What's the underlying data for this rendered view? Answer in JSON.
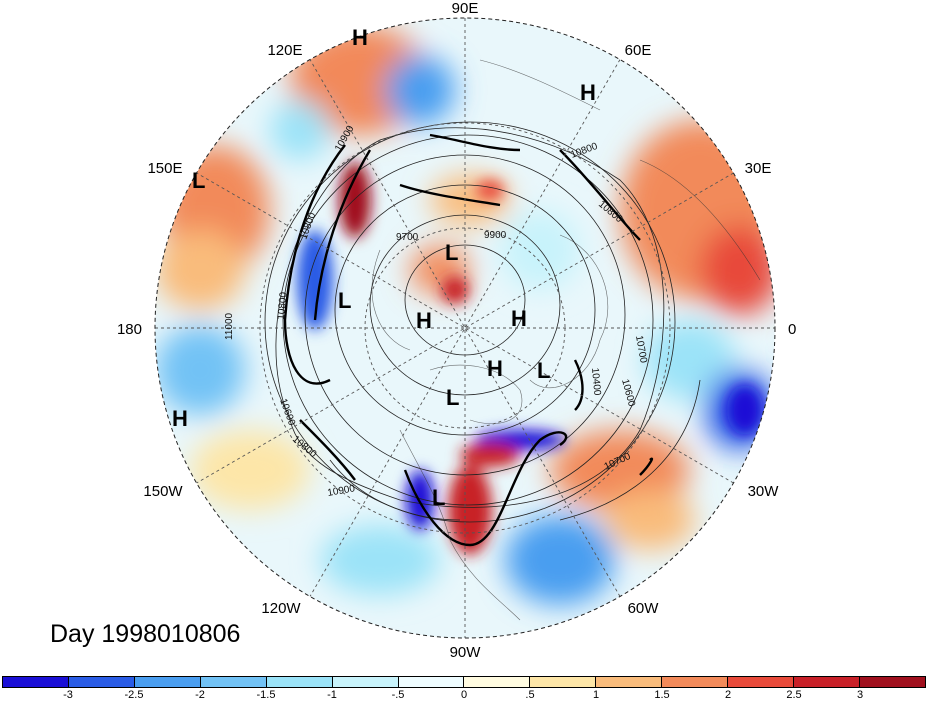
{
  "map": {
    "projection": "north-polar-stereographic",
    "longitude_labels": [
      {
        "id": "90e",
        "text": "90E"
      },
      {
        "id": "60e",
        "text": "60E"
      },
      {
        "id": "30e",
        "text": "30E"
      },
      {
        "id": "0",
        "text": "0"
      },
      {
        "id": "30w",
        "text": "30W"
      },
      {
        "id": "60w",
        "text": "60W"
      },
      {
        "id": "90w",
        "text": "90W"
      },
      {
        "id": "120w",
        "text": "120W"
      },
      {
        "id": "150w",
        "text": "150W"
      },
      {
        "id": "180",
        "text": "180"
      },
      {
        "id": "150e",
        "text": "150E"
      },
      {
        "id": "120e",
        "text": "120E"
      }
    ],
    "pressure_markers": [
      {
        "text": "H"
      },
      {
        "text": "H"
      },
      {
        "text": "L"
      },
      {
        "text": "H"
      },
      {
        "text": "L"
      },
      {
        "text": "L"
      },
      {
        "text": "H"
      },
      {
        "text": "H"
      },
      {
        "text": "H"
      },
      {
        "text": "L"
      },
      {
        "text": "L"
      },
      {
        "text": "H"
      },
      {
        "text": "L"
      }
    ],
    "contour_labels": [
      {
        "text": "10900"
      },
      {
        "text": "10800"
      },
      {
        "text": "10800"
      },
      {
        "text": "9700"
      },
      {
        "text": "9900"
      },
      {
        "text": "10800"
      },
      {
        "text": "10800"
      },
      {
        "text": "11000"
      },
      {
        "text": "10400"
      },
      {
        "text": "10700"
      },
      {
        "text": "10600"
      },
      {
        "text": "10700"
      },
      {
        "text": "10600"
      },
      {
        "text": "10800"
      },
      {
        "text": "10900"
      }
    ]
  },
  "date_label": "Day 1998010806",
  "colorbar": {
    "colors": [
      "#1a0fd6",
      "#2a5ce6",
      "#4a9ef0",
      "#72c2f5",
      "#9be3f8",
      "#c8f3fb",
      "#eefcff",
      "#fffbe0",
      "#fde6a8",
      "#f9bc7c",
      "#f28a5a",
      "#e84a3a",
      "#c82028",
      "#a0101e"
    ],
    "tick_labels": [
      "-3",
      "-2.5",
      "-2",
      "-1.5",
      "-1",
      "-.5",
      "0",
      ".5",
      "1",
      "1.5",
      "2",
      "2.5",
      "3"
    ]
  },
  "chart_data": {
    "type": "heatmap",
    "title": "",
    "field": "anomaly shading with height contours",
    "contour_values": [
      9700,
      9900,
      10400,
      10600,
      10700,
      10800,
      10900,
      11000
    ],
    "colorbar_levels": [
      -3,
      -2.5,
      -2,
      -1.5,
      -1,
      -0.5,
      0,
      0.5,
      1,
      1.5,
      2,
      2.5,
      3
    ],
    "colorbar_range": [
      -3.5,
      3.5
    ],
    "date": "1998010806"
  }
}
